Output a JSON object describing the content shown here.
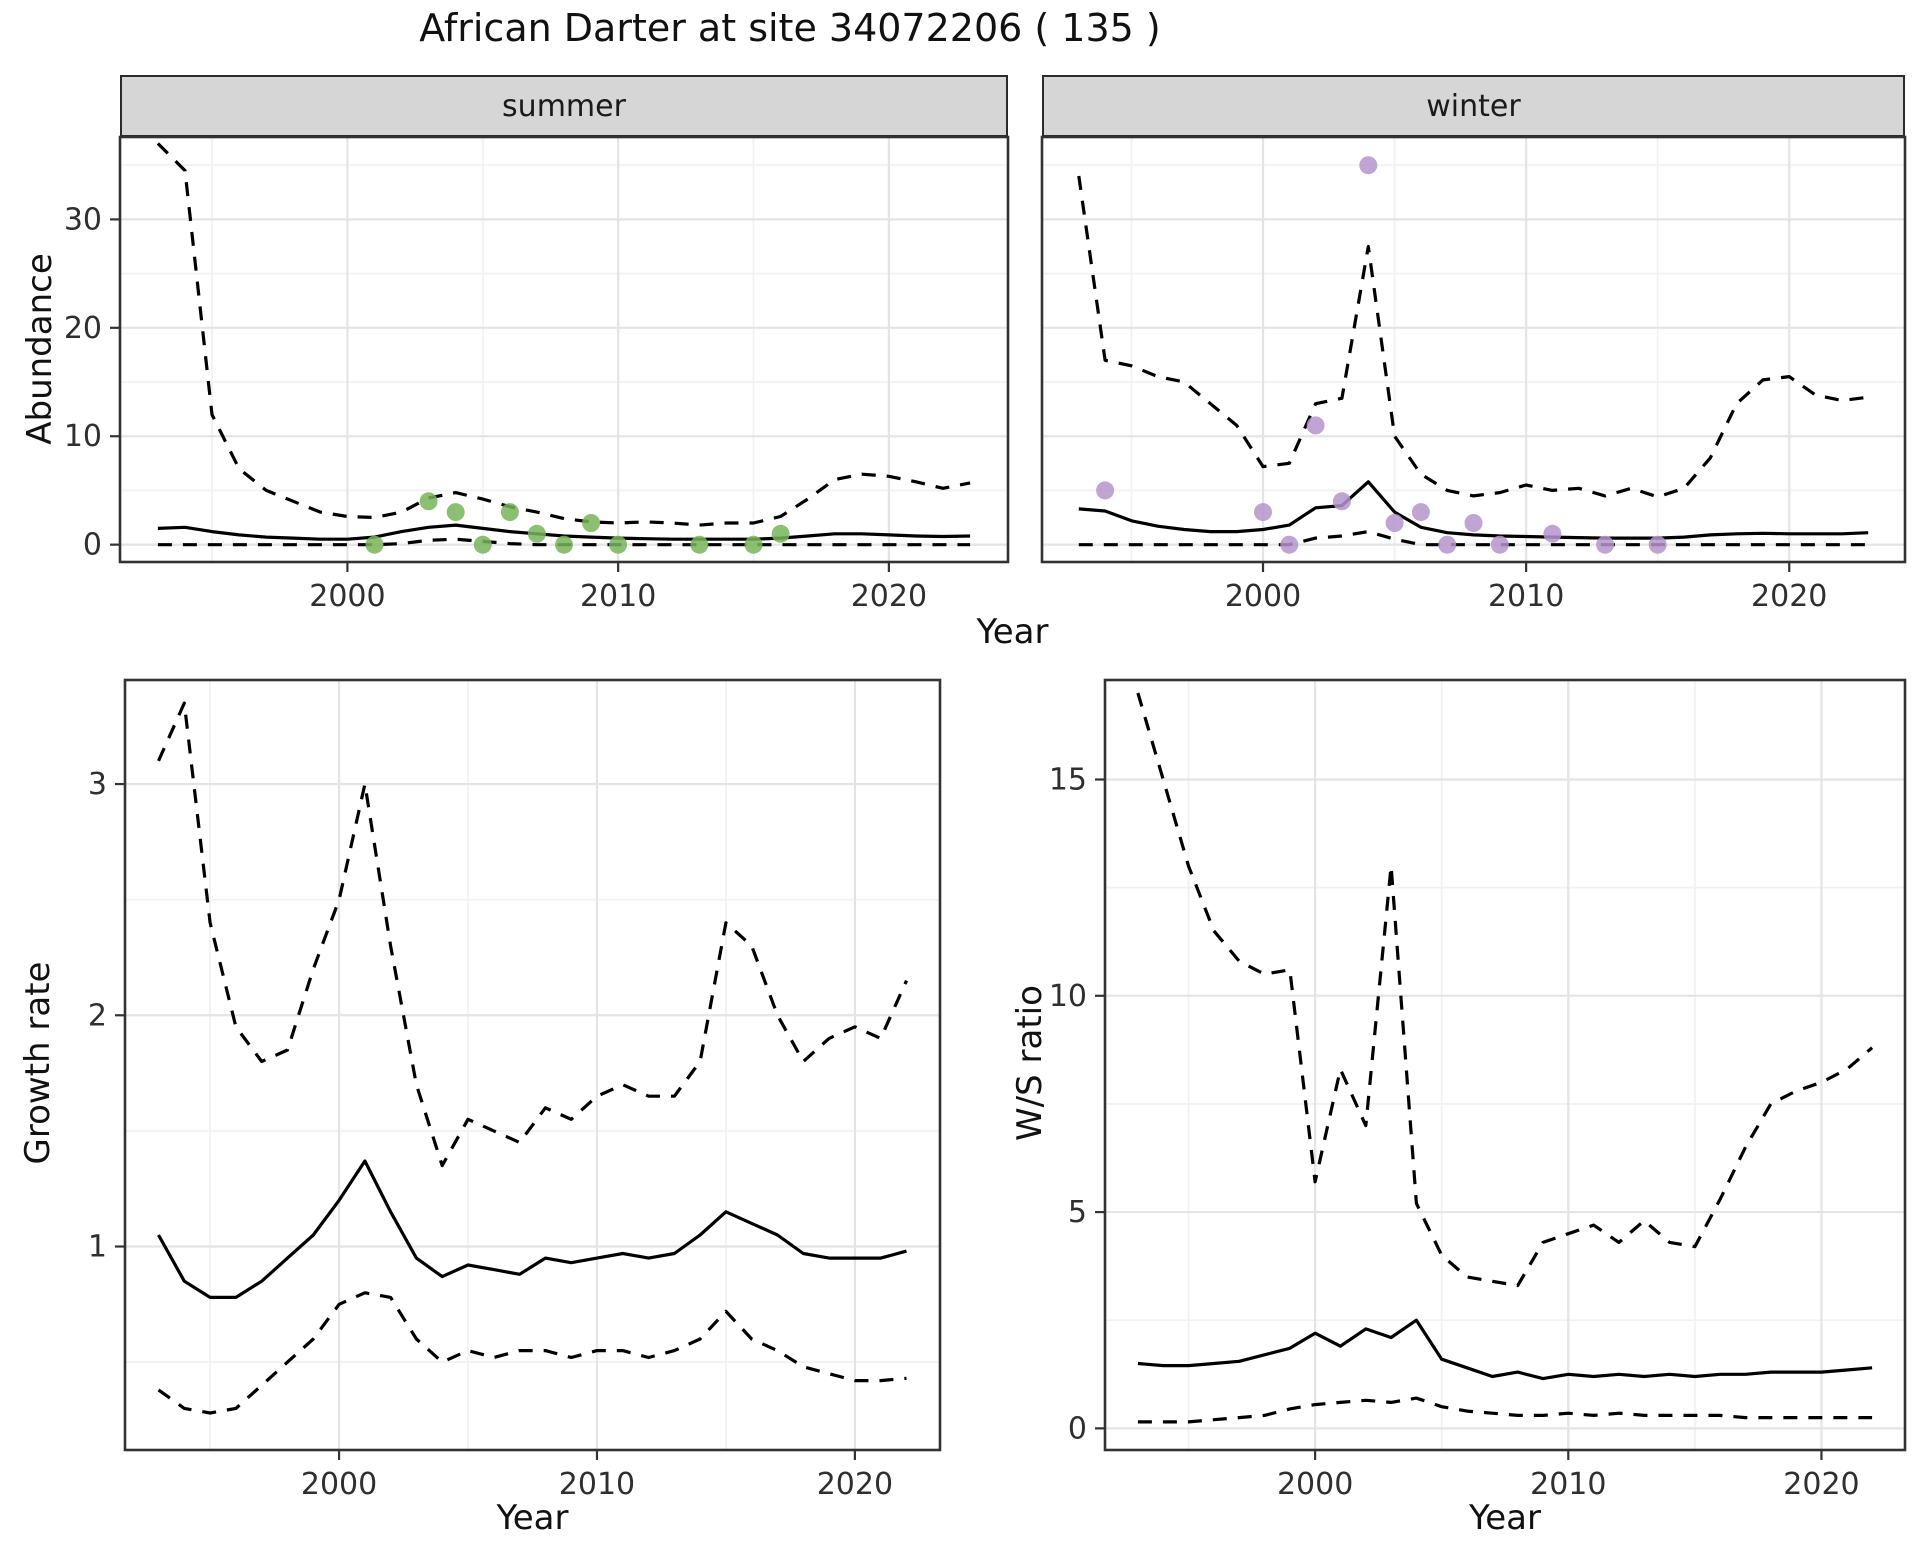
{
  "title": "African Darter at site 34072206 ( 135 )",
  "colors": {
    "summer_point": "#77b55a",
    "winter_point": "#b494cc",
    "line": "#000000",
    "border": "#333333",
    "grid_major": "#e4e4e4",
    "grid_minor": "#f2f2f2",
    "tick_text": "#2f2f2f",
    "strip_bg": "#d6d6d6",
    "panel_bg": "#ffffff"
  },
  "chart_data": [
    {
      "id": "abundance-summer",
      "type": "line",
      "facet": "summer",
      "title": "",
      "xlabel": "Year",
      "ylabel": "Abundance",
      "x_start": 1993,
      "xlim": [
        1991.6,
        2024.4
      ],
      "ylim": [
        -1.6,
        37.6
      ],
      "xticks": [
        2000,
        2010,
        2020
      ],
      "yticks": [
        0,
        10,
        20,
        30
      ],
      "x_minor": [
        1995,
        2005,
        2015
      ],
      "y_minor": [
        5,
        15,
        25,
        35
      ],
      "series": [
        {
          "name": "upper-ci",
          "style": "dashed",
          "values": [
            37,
            34.5,
            12,
            7,
            5,
            4,
            3,
            2.6,
            2.5,
            3,
            4.3,
            4.8,
            4.2,
            3.5,
            3,
            2.4,
            2.1,
            2,
            2.1,
            2,
            1.8,
            2,
            2,
            2.6,
            4.2,
            6,
            6.5,
            6.3,
            5.8,
            5.2,
            5.7
          ]
        },
        {
          "name": "median",
          "style": "solid",
          "values": [
            1.5,
            1.6,
            1.2,
            0.9,
            0.7,
            0.6,
            0.5,
            0.5,
            0.7,
            1.2,
            1.6,
            1.8,
            1.5,
            1.2,
            1,
            0.8,
            0.7,
            0.6,
            0.55,
            0.5,
            0.5,
            0.5,
            0.5,
            0.6,
            0.8,
            1,
            1,
            0.9,
            0.8,
            0.75,
            0.8
          ]
        },
        {
          "name": "lower-ci",
          "style": "dashed",
          "values": [
            0,
            0,
            0,
            0,
            0,
            0,
            0,
            0,
            0,
            0.1,
            0.4,
            0.5,
            0.3,
            0.1,
            0,
            0,
            0,
            0,
            0,
            0,
            0,
            0,
            0,
            0,
            0,
            0,
            0,
            0,
            0,
            0,
            0
          ]
        }
      ],
      "points": {
        "name": "observed-counts-summer",
        "color_key": "summer_point",
        "x": [
          2001,
          2003,
          2004,
          2005,
          2006,
          2007,
          2008,
          2009,
          2010,
          2013,
          2015,
          2016
        ],
        "y": [
          0,
          4,
          3,
          0,
          3,
          1,
          0,
          2,
          0,
          0,
          0,
          1
        ]
      }
    },
    {
      "id": "abundance-winter",
      "type": "line",
      "facet": "winter",
      "title": "",
      "xlabel": "Year",
      "ylabel": "Abundance",
      "x_start": 1993,
      "xlim": [
        1991.6,
        2024.4
      ],
      "ylim": [
        -1.6,
        37.6
      ],
      "xticks": [
        2000,
        2010,
        2020
      ],
      "yticks": [
        0,
        10,
        20,
        30
      ],
      "x_minor": [
        1995,
        2005,
        2015
      ],
      "y_minor": [
        5,
        15,
        25,
        35
      ],
      "series": [
        {
          "name": "upper-ci",
          "style": "dashed",
          "values": [
            34,
            17,
            16.5,
            15.5,
            15,
            13,
            11,
            7.2,
            7.5,
            13,
            13.5,
            27.5,
            10,
            6.5,
            5,
            4.5,
            4.8,
            5.5,
            5,
            5.2,
            4.5,
            5.2,
            4.4,
            5.2,
            8,
            13,
            15.2,
            15.5,
            13.8,
            13.3,
            13.6
          ]
        },
        {
          "name": "median",
          "style": "solid",
          "values": [
            3.3,
            3.1,
            2.2,
            1.7,
            1.4,
            1.2,
            1.2,
            1.4,
            1.8,
            3.4,
            3.6,
            5.8,
            3,
            1.6,
            1.1,
            0.9,
            0.8,
            0.75,
            0.7,
            0.65,
            0.6,
            0.6,
            0.6,
            0.7,
            0.9,
            1,
            1.05,
            1,
            1,
            1,
            1.1
          ]
        },
        {
          "name": "lower-ci",
          "style": "dashed",
          "values": [
            0,
            0,
            0,
            0,
            0,
            0,
            0,
            0,
            0,
            0.6,
            0.8,
            1.2,
            0.5,
            0,
            0,
            0,
            0,
            0,
            0,
            0,
            0,
            0,
            0,
            0,
            0,
            0,
            0,
            0,
            0,
            0,
            0
          ]
        }
      ],
      "points": {
        "name": "observed-counts-winter",
        "color_key": "winter_point",
        "x": [
          1994,
          2000,
          2001,
          2002,
          2003,
          2004,
          2005,
          2006,
          2007,
          2008,
          2009,
          2011,
          2013,
          2015
        ],
        "y": [
          5,
          3,
          0,
          11,
          4,
          35,
          2,
          3,
          0,
          2,
          0,
          1,
          0,
          0
        ]
      }
    },
    {
      "id": "growth-rate",
      "type": "line",
      "facet": "",
      "title": "",
      "xlabel": "Year",
      "ylabel": "Growth rate",
      "x_start": 1993,
      "xlim": [
        1991.7,
        2023.3
      ],
      "ylim": [
        0.12,
        3.45
      ],
      "xticks": [
        2000,
        2010,
        2020
      ],
      "yticks": [
        1,
        2,
        3
      ],
      "x_minor": [
        1995,
        2005,
        2015
      ],
      "y_minor": [
        0.5,
        1.5,
        2.5
      ],
      "series": [
        {
          "name": "upper-ci",
          "style": "dashed",
          "values": [
            3.1,
            3.35,
            2.4,
            1.95,
            1.8,
            1.85,
            2.2,
            2.5,
            3.0,
            2.3,
            1.7,
            1.35,
            1.55,
            1.5,
            1.45,
            1.6,
            1.55,
            1.65,
            1.7,
            1.65,
            1.65,
            1.8,
            2.4,
            2.3,
            2.0,
            1.8,
            1.9,
            1.95,
            1.9,
            2.15
          ]
        },
        {
          "name": "median",
          "style": "solid",
          "values": [
            1.05,
            0.85,
            0.78,
            0.78,
            0.85,
            0.95,
            1.05,
            1.2,
            1.37,
            1.15,
            0.95,
            0.87,
            0.92,
            0.9,
            0.88,
            0.95,
            0.93,
            0.95,
            0.97,
            0.95,
            0.97,
            1.05,
            1.15,
            1.1,
            1.05,
            0.97,
            0.95,
            0.95,
            0.95,
            0.98
          ]
        },
        {
          "name": "lower-ci",
          "style": "dashed",
          "values": [
            0.38,
            0.3,
            0.28,
            0.3,
            0.4,
            0.5,
            0.6,
            0.75,
            0.8,
            0.78,
            0.6,
            0.5,
            0.55,
            0.52,
            0.55,
            0.55,
            0.52,
            0.55,
            0.55,
            0.52,
            0.55,
            0.6,
            0.72,
            0.6,
            0.55,
            0.48,
            0.45,
            0.42,
            0.42,
            0.43
          ]
        }
      ]
    },
    {
      "id": "ws-ratio",
      "type": "line",
      "facet": "",
      "title": "",
      "xlabel": "Year",
      "ylabel": "W/S ratio",
      "x_start": 1993,
      "xlim": [
        1991.7,
        2023.3
      ],
      "ylim": [
        -0.5,
        17.3
      ],
      "xticks": [
        2000,
        2010,
        2020
      ],
      "yticks": [
        0,
        5,
        10,
        15
      ],
      "x_minor": [
        1995,
        2005,
        2015
      ],
      "y_minor": [
        2.5,
        7.5,
        12.5
      ],
      "series": [
        {
          "name": "upper-ci",
          "style": "dashed",
          "values": [
            17,
            15,
            13,
            11.5,
            10.8,
            10.5,
            10.6,
            5.7,
            8.3,
            7.0,
            13,
            5.2,
            4.0,
            3.5,
            3.4,
            3.3,
            4.3,
            4.5,
            4.7,
            4.3,
            4.8,
            4.3,
            4.2,
            5.3,
            6.5,
            7.5,
            7.8,
            8.0,
            8.3,
            8.8
          ]
        },
        {
          "name": "median",
          "style": "solid",
          "values": [
            1.5,
            1.45,
            1.45,
            1.5,
            1.55,
            1.7,
            1.85,
            2.2,
            1.9,
            2.3,
            2.1,
            2.5,
            1.6,
            1.4,
            1.2,
            1.3,
            1.15,
            1.25,
            1.2,
            1.25,
            1.2,
            1.25,
            1.2,
            1.25,
            1.25,
            1.3,
            1.3,
            1.3,
            1.35,
            1.4
          ]
        },
        {
          "name": "lower-ci",
          "style": "dashed",
          "values": [
            0.15,
            0.15,
            0.15,
            0.2,
            0.25,
            0.3,
            0.45,
            0.55,
            0.6,
            0.65,
            0.6,
            0.7,
            0.5,
            0.4,
            0.35,
            0.3,
            0.3,
            0.35,
            0.3,
            0.35,
            0.3,
            0.3,
            0.3,
            0.3,
            0.25,
            0.25,
            0.25,
            0.25,
            0.25,
            0.25
          ]
        }
      ]
    }
  ]
}
